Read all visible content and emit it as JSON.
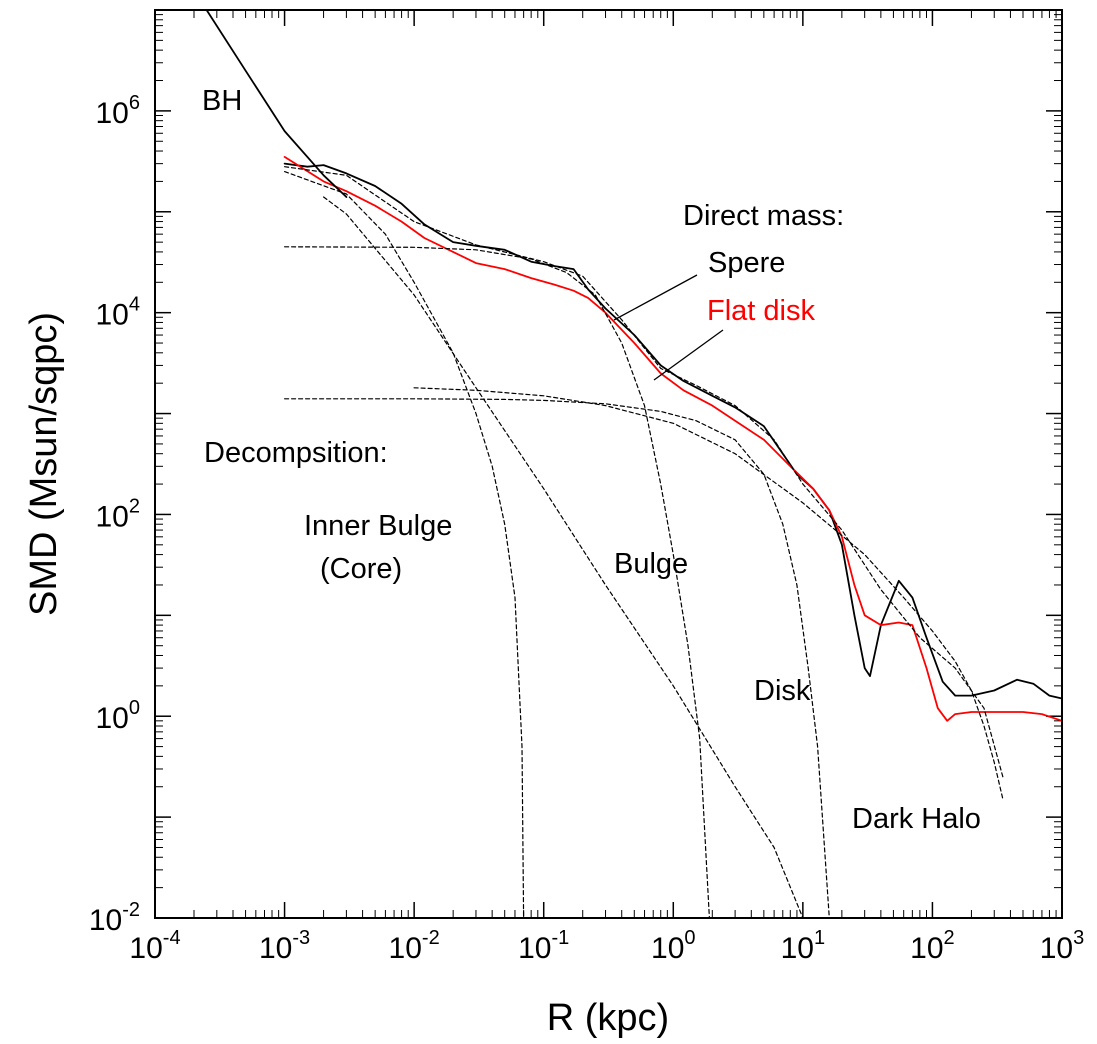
{
  "chart_data": {
    "type": "line",
    "xlabel": "R (kpc)",
    "ylabel": "SMD (Msun/sqpc)",
    "xscale": "log",
    "yscale": "log",
    "xlim": [
      0.0001,
      1000
    ],
    "ylim": [
      0.01,
      10000000
    ],
    "xticks": [
      {
        "base": "10",
        "exp": "-4",
        "value": 0.0001
      },
      {
        "base": "10",
        "exp": "-3",
        "value": 0.001
      },
      {
        "base": "10",
        "exp": "-2",
        "value": 0.01
      },
      {
        "base": "10",
        "exp": "-1",
        "value": 0.1
      },
      {
        "base": "10",
        "exp": "0",
        "value": 1
      },
      {
        "base": "10",
        "exp": "1",
        "value": 10
      },
      {
        "base": "10",
        "exp": "2",
        "value": 100
      },
      {
        "base": "10",
        "exp": "3",
        "value": 1000
      }
    ],
    "yticks": [
      {
        "base": "10",
        "exp": "-2",
        "value": 0.01
      },
      {
        "base": "10",
        "exp": "0",
        "value": 1
      },
      {
        "base": "10",
        "exp": "2",
        "value": 100
      },
      {
        "base": "10",
        "exp": "4",
        "value": 10000
      },
      {
        "base": "10",
        "exp": "6",
        "value": 1000000
      }
    ],
    "series": [
      {
        "id": "sphere",
        "style": "solid",
        "color": "#000000",
        "points": [
          [
            0.001,
            300000
          ],
          [
            0.0015,
            280000
          ],
          [
            0.002,
            290000
          ],
          [
            0.003,
            240000
          ],
          [
            0.005,
            180000
          ],
          [
            0.008,
            120000
          ],
          [
            0.012,
            75000
          ],
          [
            0.02,
            50000
          ],
          [
            0.03,
            46000
          ],
          [
            0.05,
            42000
          ],
          [
            0.08,
            32000
          ],
          [
            0.12,
            29000
          ],
          [
            0.17,
            27000
          ],
          [
            0.22,
            17000
          ],
          [
            0.3,
            11000
          ],
          [
            0.5,
            6000
          ],
          [
            0.8,
            3000
          ],
          [
            1.2,
            2100
          ],
          [
            2,
            1500
          ],
          [
            3,
            1150
          ],
          [
            5,
            750
          ],
          [
            7,
            400
          ],
          [
            9,
            250
          ],
          [
            12,
            180
          ],
          [
            16,
            110
          ],
          [
            20,
            50
          ],
          [
            25,
            10
          ],
          [
            30,
            3
          ],
          [
            33,
            2.5
          ],
          [
            40,
            8
          ],
          [
            55,
            22
          ],
          [
            70,
            15
          ],
          [
            90,
            6
          ],
          [
            120,
            2.2
          ],
          [
            150,
            1.6
          ],
          [
            200,
            1.6
          ],
          [
            300,
            1.8
          ],
          [
            450,
            2.3
          ],
          [
            600,
            2.1
          ],
          [
            800,
            1.6
          ],
          [
            1000,
            1.5
          ]
        ]
      },
      {
        "id": "flat-disk",
        "style": "solid",
        "color": "#ff0000",
        "points": [
          [
            0.001,
            350000
          ],
          [
            0.002,
            200000
          ],
          [
            0.003,
            160000
          ],
          [
            0.005,
            115000
          ],
          [
            0.008,
            80000
          ],
          [
            0.012,
            55000
          ],
          [
            0.02,
            40000
          ],
          [
            0.03,
            31000
          ],
          [
            0.05,
            27000
          ],
          [
            0.08,
            22000
          ],
          [
            0.12,
            19000
          ],
          [
            0.17,
            16500
          ],
          [
            0.22,
            14000
          ],
          [
            0.3,
            10000
          ],
          [
            0.5,
            5000
          ],
          [
            0.8,
            2500
          ],
          [
            1.2,
            1700
          ],
          [
            2,
            1200
          ],
          [
            3,
            850
          ],
          [
            5,
            550
          ],
          [
            8,
            300
          ],
          [
            12,
            180
          ],
          [
            16,
            110
          ],
          [
            20,
            60
          ],
          [
            25,
            20
          ],
          [
            30,
            10
          ],
          [
            40,
            8
          ],
          [
            55,
            8.5
          ],
          [
            70,
            8
          ],
          [
            90,
            3
          ],
          [
            110,
            1.2
          ],
          [
            130,
            0.9
          ],
          [
            150,
            1.05
          ],
          [
            200,
            1.1
          ],
          [
            300,
            1.1
          ],
          [
            500,
            1.1
          ],
          [
            700,
            1.05
          ],
          [
            1000,
            0.9
          ]
        ]
      },
      {
        "id": "bh",
        "style": "solid",
        "color": "#000000",
        "points": [
          [
            0.00025,
            10000000
          ],
          [
            0.0005,
            2500000
          ],
          [
            0.001,
            630000
          ],
          [
            0.002,
            230000
          ],
          [
            0.003,
            140000
          ]
        ]
      },
      {
        "id": "core-component",
        "style": "dashed",
        "color": "#000000",
        "points": [
          [
            0.001,
            250000
          ],
          [
            0.003,
            150000
          ],
          [
            0.006,
            60000
          ],
          [
            0.01,
            20000
          ],
          [
            0.02,
            4000
          ],
          [
            0.03,
            1000
          ],
          [
            0.04,
            300
          ],
          [
            0.05,
            80
          ],
          [
            0.06,
            15
          ],
          [
            0.068,
            0.5
          ],
          [
            0.07,
            0.01
          ]
        ]
      },
      {
        "id": "bulge-component",
        "style": "dashed",
        "color": "#000000",
        "points": [
          [
            0.001,
            45000
          ],
          [
            0.01,
            44500
          ],
          [
            0.03,
            42000
          ],
          [
            0.08,
            34000
          ],
          [
            0.15,
            25000
          ],
          [
            0.25,
            15000
          ],
          [
            0.4,
            5000
          ],
          [
            0.6,
            1200
          ],
          [
            0.8,
            200
          ],
          [
            1.0,
            40
          ],
          [
            1.3,
            5
          ],
          [
            1.6,
            0.6
          ],
          [
            1.9,
            0.01
          ]
        ]
      },
      {
        "id": "disk-component",
        "style": "dashed",
        "color": "#000000",
        "points": [
          [
            0.001,
            1400
          ],
          [
            0.01,
            1400
          ],
          [
            0.05,
            1380
          ],
          [
            0.1,
            1350
          ],
          [
            0.3,
            1250
          ],
          [
            0.8,
            1050
          ],
          [
            1.5,
            850
          ],
          [
            3,
            550
          ],
          [
            5,
            250
          ],
          [
            7,
            80
          ],
          [
            9,
            20
          ],
          [
            11,
            3
          ],
          [
            13,
            0.5
          ],
          [
            16,
            0.01
          ]
        ]
      },
      {
        "id": "dark-halo-component",
        "style": "dashed",
        "color": "#000000",
        "points": [
          [
            0.01,
            1800
          ],
          [
            0.03,
            1700
          ],
          [
            0.1,
            1500
          ],
          [
            0.3,
            1200
          ],
          [
            1,
            800
          ],
          [
            3,
            400
          ],
          [
            10,
            130
          ],
          [
            30,
            40
          ],
          [
            60,
            15
          ],
          [
            100,
            7
          ],
          [
            150,
            3.5
          ],
          [
            200,
            1.8
          ],
          [
            250,
            0.8
          ],
          [
            300,
            0.35
          ],
          [
            350,
            0.15
          ]
        ]
      },
      {
        "id": "power-law-component",
        "style": "dashed",
        "color": "#000000",
        "points": [
          [
            0.002,
            140000
          ],
          [
            0.003,
            95000
          ],
          [
            0.01,
            15000
          ],
          [
            0.03,
            1800
          ],
          [
            0.1,
            180
          ],
          [
            0.3,
            20
          ],
          [
            1,
            2
          ],
          [
            3,
            0.2
          ],
          [
            6,
            0.05
          ],
          [
            10,
            0.01
          ]
        ]
      },
      {
        "id": "total-dashed",
        "style": "dashed",
        "color": "#000000",
        "points": [
          [
            0.001,
            280000
          ],
          [
            0.003,
            230000
          ],
          [
            0.01,
            80000
          ],
          [
            0.03,
            47000
          ],
          [
            0.1,
            32000
          ],
          [
            0.2,
            23000
          ],
          [
            0.4,
            8500
          ],
          [
            0.8,
            2800
          ],
          [
            1.5,
            1900
          ],
          [
            3,
            1200
          ],
          [
            6,
            550
          ],
          [
            10,
            200
          ],
          [
            20,
            70
          ],
          [
            40,
            18
          ],
          [
            80,
            6
          ],
          [
            150,
            3
          ],
          [
            250,
            1.2
          ],
          [
            350,
            0.25
          ]
        ]
      }
    ],
    "annotations": [
      {
        "text": "BH"
      },
      {
        "text": "Direct mass:"
      },
      {
        "text": "Spere"
      },
      {
        "text": "Flat disk",
        "color": "#ff0000"
      },
      {
        "text": "Decompsition:"
      },
      {
        "text": "Inner Bulge"
      },
      {
        "text": "(Core)"
      },
      {
        "text": "Bulge"
      },
      {
        "text": "Disk"
      },
      {
        "text": "Dark Halo"
      }
    ]
  }
}
